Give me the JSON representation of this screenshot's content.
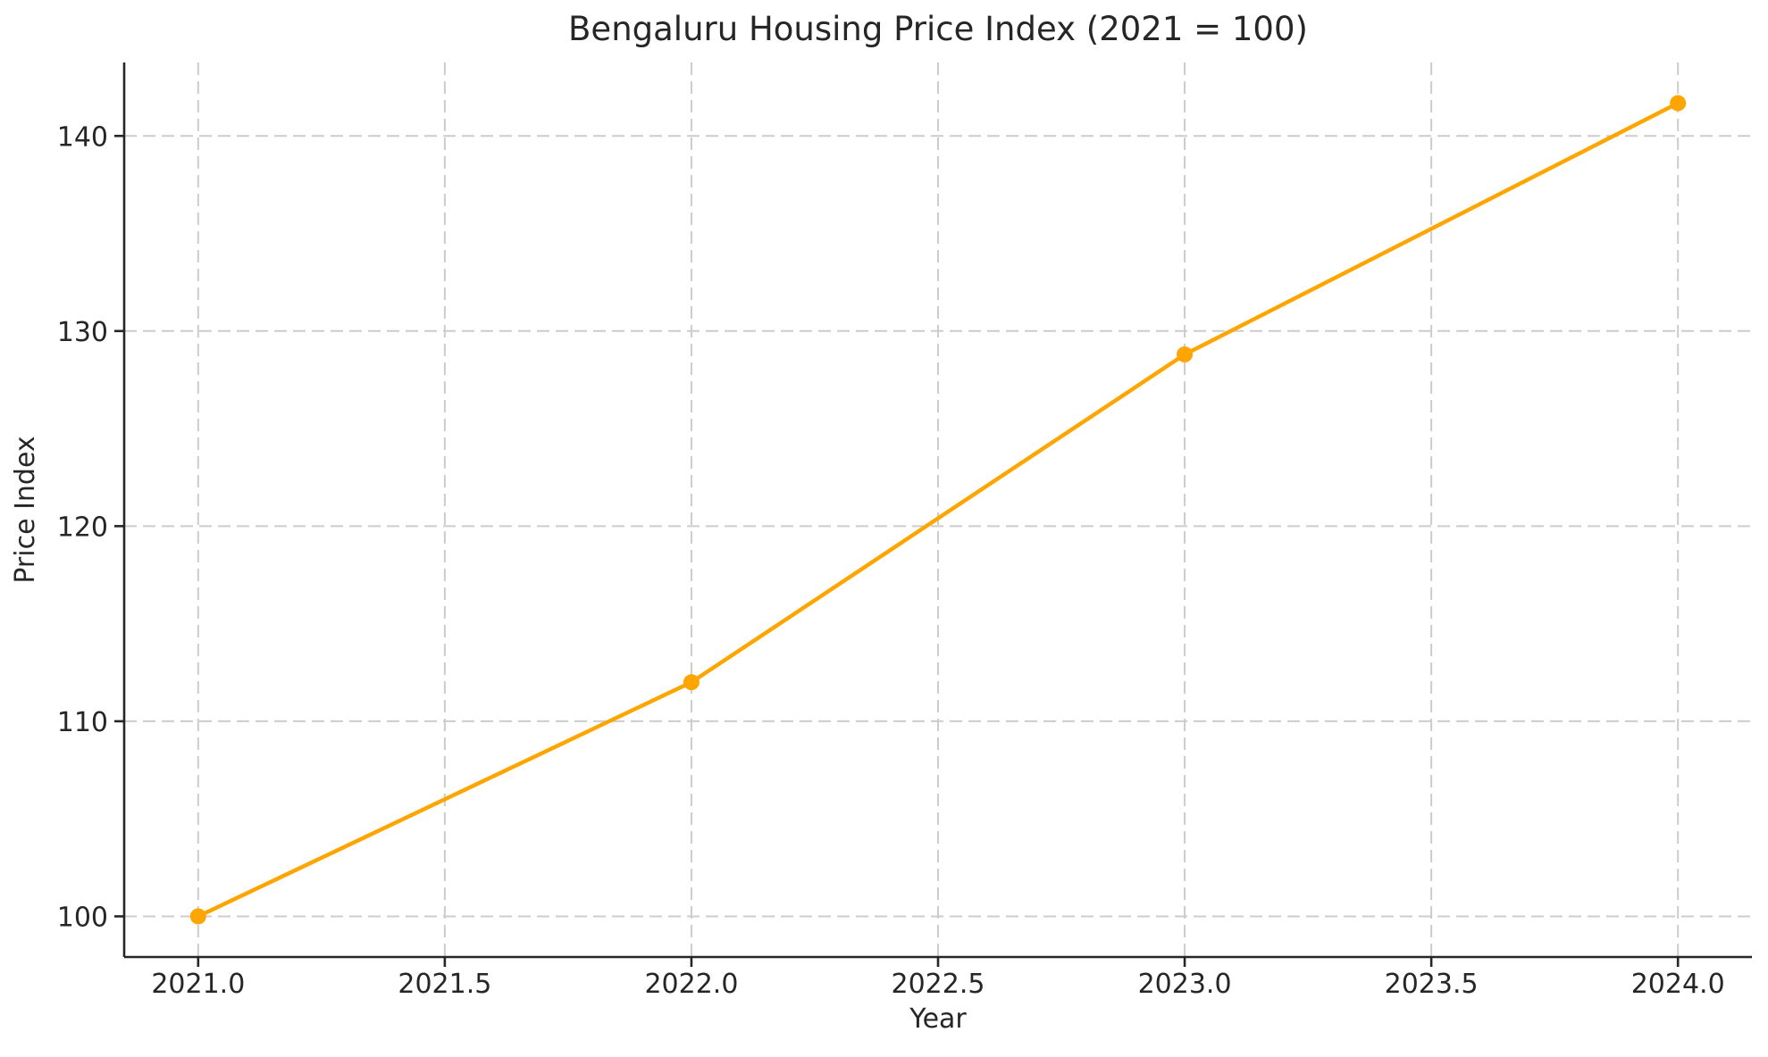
{
  "figure": {
    "background_color": "#ffffff",
    "text_color": "#262626"
  },
  "chart_data": {
    "type": "line",
    "title": "Bengaluru Housing Price Index (2021 = 100)",
    "xlabel": "Year",
    "ylabel": "Price Index",
    "x": [
      2021,
      2022,
      2023,
      2024
    ],
    "y": [
      100,
      112,
      128.8,
      141.68
    ],
    "xticks": [
      2021.0,
      2021.5,
      2022.0,
      2022.5,
      2023.0,
      2023.5,
      2024.0
    ],
    "xtick_labels": [
      "2021.0",
      "2021.5",
      "2022.0",
      "2022.5",
      "2023.0",
      "2023.5",
      "2024.0"
    ],
    "yticks": [
      100,
      110,
      120,
      130,
      140
    ],
    "ytick_labels": [
      "100",
      "110",
      "120",
      "130",
      "140"
    ],
    "xlim": [
      2020.85,
      2024.15
    ],
    "ylim": [
      97.916,
      143.764
    ],
    "line_color": "#FFA500",
    "marker": "circle",
    "marker_color": "#FFA500",
    "grid": true,
    "grid_line_style": "dashed",
    "grid_color": "#cccccc",
    "axis_color": "#262626",
    "legend": "none"
  }
}
